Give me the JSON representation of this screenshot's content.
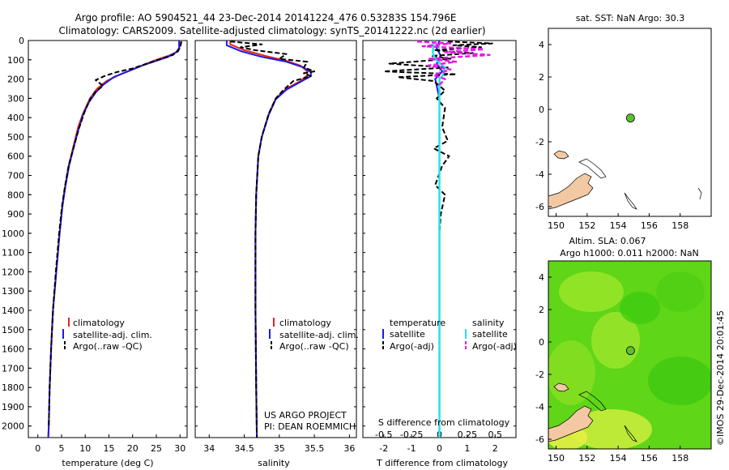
{
  "header": {
    "line1": "Argo profile: AO 5904521_44 23-Dec-2014 20141224_476 0.53283S 154.796E",
    "line2": "Climatology: CARS2009. Satellite-adjusted climatology: synTS_20141222.nc (2d earlier)"
  },
  "depth_ticks": [
    "0",
    "100",
    "200",
    "300",
    "400",
    "500",
    "600",
    "700",
    "800",
    "900",
    "1000",
    "1100",
    "1200",
    "1300",
    "1400",
    "1500",
    "1600",
    "1700",
    "1800",
    "1900",
    "2000"
  ],
  "legend_tp": {
    "climatology": "climatology",
    "satellite": "satellite-adj. clim.",
    "argo": "Argo(..raw -QC)"
  },
  "legend_diff": {
    "temperature": "temperature",
    "salinity": "salinity",
    "t_satellite": "satellite",
    "t_argo": "Argo(-adj)",
    "s_satellite": "satellite",
    "s_argo": "Argo(-adj)"
  },
  "project": {
    "line1": "US ARGO PROJECT",
    "line2": "PI: DEAN ROEMMICH"
  },
  "sst_title": "sat. SST: NaN Argo: 30.3",
  "sla_title1": "Altim. SLA: 0.067",
  "sla_title2": "Argo h1000: 0.011 h2000: NaN",
  "credit": "©IMOS 29-Dec-2014 20:01:45",
  "colors": {
    "climatology": "#e8221c",
    "satellite": "#1a1ae6",
    "argo": "#000000",
    "s_satellite": "#22e4ec",
    "s_argo": "#e61ae6",
    "land": "#f2c9a2",
    "float": "#5ec02e"
  },
  "chart_data": [
    {
      "type": "line",
      "name": "temperature",
      "xlabel": "temperature (deg C)",
      "ylabel": "depth",
      "xlim": [
        -2,
        31.5
      ],
      "ylim": [
        2060,
        0
      ],
      "xticks": [
        "0",
        "5",
        "10",
        "15",
        "20",
        "25",
        "30"
      ],
      "series": [
        {
          "name": "climatology",
          "points": [
            [
              29.9,
              0
            ],
            [
              29.9,
              40
            ],
            [
              29.3,
              60
            ],
            [
              27.5,
              80
            ],
            [
              25,
              100
            ],
            [
              22.5,
              125
            ],
            [
              20,
              150
            ],
            [
              17,
              180
            ],
            [
              14.5,
              210
            ],
            [
              12.5,
              250
            ],
            [
              11,
              300
            ],
            [
              9.5,
              380
            ],
            [
              8.5,
              450
            ],
            [
              7.5,
              550
            ],
            [
              6.5,
              650
            ],
            [
              5.8,
              750
            ],
            [
              5.2,
              850
            ],
            [
              4.6,
              1000
            ],
            [
              3.9,
              1200
            ],
            [
              3.2,
              1400
            ],
            [
              2.8,
              1600
            ],
            [
              2.5,
              1800
            ],
            [
              2.3,
              2000
            ],
            [
              2.2,
              2060
            ]
          ]
        },
        {
          "name": "satellite-adj. clim.",
          "points": [
            [
              29.8,
              0
            ],
            [
              29.8,
              40
            ],
            [
              29.2,
              60
            ],
            [
              27.5,
              85
            ],
            [
              25,
              105
            ],
            [
              22,
              130
            ],
            [
              19,
              160
            ],
            [
              16,
              190
            ],
            [
              13.8,
              230
            ],
            [
              12.2,
              270
            ],
            [
              10.8,
              320
            ],
            [
              9.6,
              380
            ],
            [
              8.6,
              460
            ],
            [
              7.6,
              550
            ],
            [
              6.6,
              650
            ],
            [
              5.8,
              760
            ],
            [
              5.2,
              860
            ],
            [
              4.6,
              1000
            ],
            [
              3.9,
              1200
            ],
            [
              3.2,
              1400
            ],
            [
              2.8,
              1600
            ],
            [
              2.5,
              1800
            ],
            [
              2.3,
              2000
            ],
            [
              2.2,
              2060
            ]
          ]
        },
        {
          "name": "Argo(..raw -QC)",
          "points": [
            [
              30.3,
              5
            ],
            [
              30.1,
              30
            ],
            [
              29.6,
              55
            ],
            [
              28.5,
              75
            ],
            [
              26,
              95
            ],
            [
              23,
              120
            ],
            [
              20,
              145
            ],
            [
              16.5,
              165
            ],
            [
              14,
              185
            ],
            [
              12.2,
              205
            ],
            [
              13.8,
              235
            ],
            [
              12.2,
              265
            ],
            [
              11,
              305
            ],
            [
              9.8,
              375
            ],
            [
              8.7,
              455
            ],
            [
              7.6,
              550
            ],
            [
              6.5,
              650
            ],
            [
              5.7,
              760
            ],
            [
              5.1,
              860
            ],
            [
              4.5,
              1000
            ],
            [
              3.8,
              1200
            ],
            [
              3.2,
              1400
            ],
            [
              2.8,
              1600
            ],
            [
              2.5,
              1800
            ],
            [
              2.3,
              2000
            ]
          ]
        }
      ]
    },
    {
      "type": "line",
      "name": "salinity",
      "xlabel": "salinity",
      "ylabel": "depth",
      "xlim": [
        33.8,
        36.1
      ],
      "ylim": [
        2060,
        0
      ],
      "xticks": [
        "34",
        "34.5",
        "35",
        "35.5",
        "36"
      ],
      "series": [
        {
          "name": "climatology",
          "points": [
            [
              34.3,
              0
            ],
            [
              34.3,
              20
            ],
            [
              34.5,
              50
            ],
            [
              34.8,
              80
            ],
            [
              35.1,
              105
            ],
            [
              35.3,
              130
            ],
            [
              35.4,
              160
            ],
            [
              35.4,
              180
            ],
            [
              35.3,
              210
            ],
            [
              35.1,
              250
            ],
            [
              34.95,
              300
            ],
            [
              34.85,
              380
            ],
            [
              34.75,
              500
            ],
            [
              34.7,
              600
            ],
            [
              34.67,
              800
            ],
            [
              34.66,
              1000
            ],
            [
              34.66,
              1400
            ],
            [
              34.67,
              1800
            ],
            [
              34.68,
              2060
            ]
          ]
        },
        {
          "name": "satellite-adj. clim.",
          "points": [
            [
              34.25,
              0
            ],
            [
              34.25,
              25
            ],
            [
              34.45,
              55
            ],
            [
              34.75,
              85
            ],
            [
              35.1,
              110
            ],
            [
              35.35,
              140
            ],
            [
              35.45,
              165
            ],
            [
              35.45,
              185
            ],
            [
              35.3,
              215
            ],
            [
              35.1,
              255
            ],
            [
              34.95,
              305
            ],
            [
              34.85,
              385
            ],
            [
              34.75,
              500
            ],
            [
              34.7,
              600
            ],
            [
              34.67,
              800
            ],
            [
              34.66,
              1000
            ],
            [
              34.66,
              1400
            ],
            [
              34.67,
              1800
            ],
            [
              34.68,
              2060
            ]
          ]
        },
        {
          "name": "Argo(..raw -QC)",
          "points": [
            [
              34.3,
              5
            ],
            [
              34.75,
              20
            ],
            [
              34.45,
              35
            ],
            [
              34.65,
              50
            ],
            [
              35.1,
              70
            ],
            [
              35.0,
              95
            ],
            [
              35.4,
              110
            ],
            [
              35.35,
              140
            ],
            [
              35.5,
              160
            ],
            [
              35.35,
              170
            ],
            [
              35.45,
              185
            ],
            [
              35.2,
              210
            ],
            [
              35.05,
              260
            ],
            [
              34.95,
              300
            ],
            [
              34.85,
              380
            ],
            [
              34.75,
              500
            ],
            [
              34.7,
              600
            ],
            [
              34.67,
              800
            ],
            [
              34.66,
              1000
            ],
            [
              34.66,
              1400
            ],
            [
              34.67,
              1800
            ],
            [
              34.68,
              2060
            ]
          ]
        }
      ]
    },
    {
      "type": "line",
      "name": "difference",
      "xlabel": "T difference from climatology",
      "xlabel_top": "S difference from climatology",
      "ylabel": "depth",
      "xlim": [
        -2.75,
        2.75
      ],
      "ylim": [
        2060,
        0
      ],
      "xticks": [
        "-2",
        "-1",
        "0",
        "1",
        "2"
      ],
      "xticks_s": [
        "-0.5",
        "-0.25",
        "0",
        "0.25",
        "0.5"
      ],
      "s_scale": 4,
      "series": [
        {
          "name": "T satellite",
          "points": [
            [
              0,
              0
            ],
            [
              -0.1,
              40
            ],
            [
              0.05,
              80
            ],
            [
              -0.1,
              120
            ],
            [
              0.1,
              160
            ],
            [
              -0.15,
              200
            ],
            [
              0,
              300
            ],
            [
              0,
              500
            ],
            [
              0,
              1000
            ],
            [
              0,
              2060
            ]
          ]
        },
        {
          "name": "T Argo(-adj)",
          "points": [
            [
              0.3,
              5
            ],
            [
              1.9,
              15
            ],
            [
              0.5,
              25
            ],
            [
              1.5,
              35
            ],
            [
              -0.2,
              50
            ],
            [
              1.2,
              65
            ],
            [
              -0.3,
              80
            ],
            [
              0.4,
              95
            ],
            [
              -1.8,
              120
            ],
            [
              0.3,
              140
            ],
            [
              -2.0,
              160
            ],
            [
              0.6,
              175
            ],
            [
              -1.5,
              190
            ],
            [
              -0.2,
              210
            ],
            [
              0.2,
              260
            ],
            [
              -0.1,
              300
            ],
            [
              0.2,
              350
            ],
            [
              0.1,
              450
            ],
            [
              0.3,
              520
            ],
            [
              -0.2,
              560
            ],
            [
              0.35,
              600
            ],
            [
              0.1,
              650
            ],
            [
              -0.15,
              750
            ],
            [
              0.2,
              800
            ],
            [
              0.05,
              900
            ],
            [
              0,
              1000
            ],
            [
              0,
              1400
            ],
            [
              0,
              1800
            ],
            [
              0,
              2000
            ]
          ]
        },
        {
          "name": "S satellite",
          "points": [
            [
              -0.05,
              0
            ],
            [
              -0.06,
              60
            ],
            [
              -0.05,
              80
            ],
            [
              -0.03,
              100
            ],
            [
              0.05,
              140
            ],
            [
              0.03,
              180
            ],
            [
              0,
              200
            ],
            [
              0,
              300
            ],
            [
              0,
              500
            ],
            [
              0,
              2060
            ]
          ]
        },
        {
          "name": "S Argo(-adj)",
          "points": [
            [
              -0.2,
              5
            ],
            [
              0.1,
              15
            ],
            [
              -0.15,
              30
            ],
            [
              0.4,
              45
            ],
            [
              0.05,
              60
            ],
            [
              0.45,
              75
            ],
            [
              -0.1,
              95
            ],
            [
              0.15,
              110
            ],
            [
              -0.1,
              130
            ],
            [
              0.1,
              150
            ],
            [
              -0.05,
              180
            ],
            [
              0.05,
              200
            ],
            [
              0,
              230
            ]
          ]
        }
      ]
    },
    {
      "type": "scatter",
      "name": "sst-map",
      "title": "sat. SST: NaN Argo: 30.3",
      "xlim": [
        149.5,
        160
      ],
      "ylim": [
        -6.6,
        5
      ],
      "xticks": [
        "150",
        "152",
        "154",
        "156",
        "158"
      ],
      "yticks": [
        "4",
        "2",
        "0",
        "-2",
        "-4",
        "-6"
      ],
      "points": [
        [
          154.796,
          -0.533
        ]
      ]
    },
    {
      "type": "heatmap",
      "name": "sla-map",
      "title": "Altim. SLA: 0.067",
      "subtitle": "Argo h1000: 0.011 h2000: NaN",
      "xlim": [
        149.5,
        160
      ],
      "ylim": [
        -6.6,
        5
      ],
      "xticks": [
        "150",
        "152",
        "154",
        "156",
        "158"
      ],
      "yticks": [
        "4",
        "2",
        "0",
        "-2",
        "-4",
        "-6"
      ],
      "points": [
        [
          154.796,
          -0.533
        ]
      ]
    }
  ]
}
